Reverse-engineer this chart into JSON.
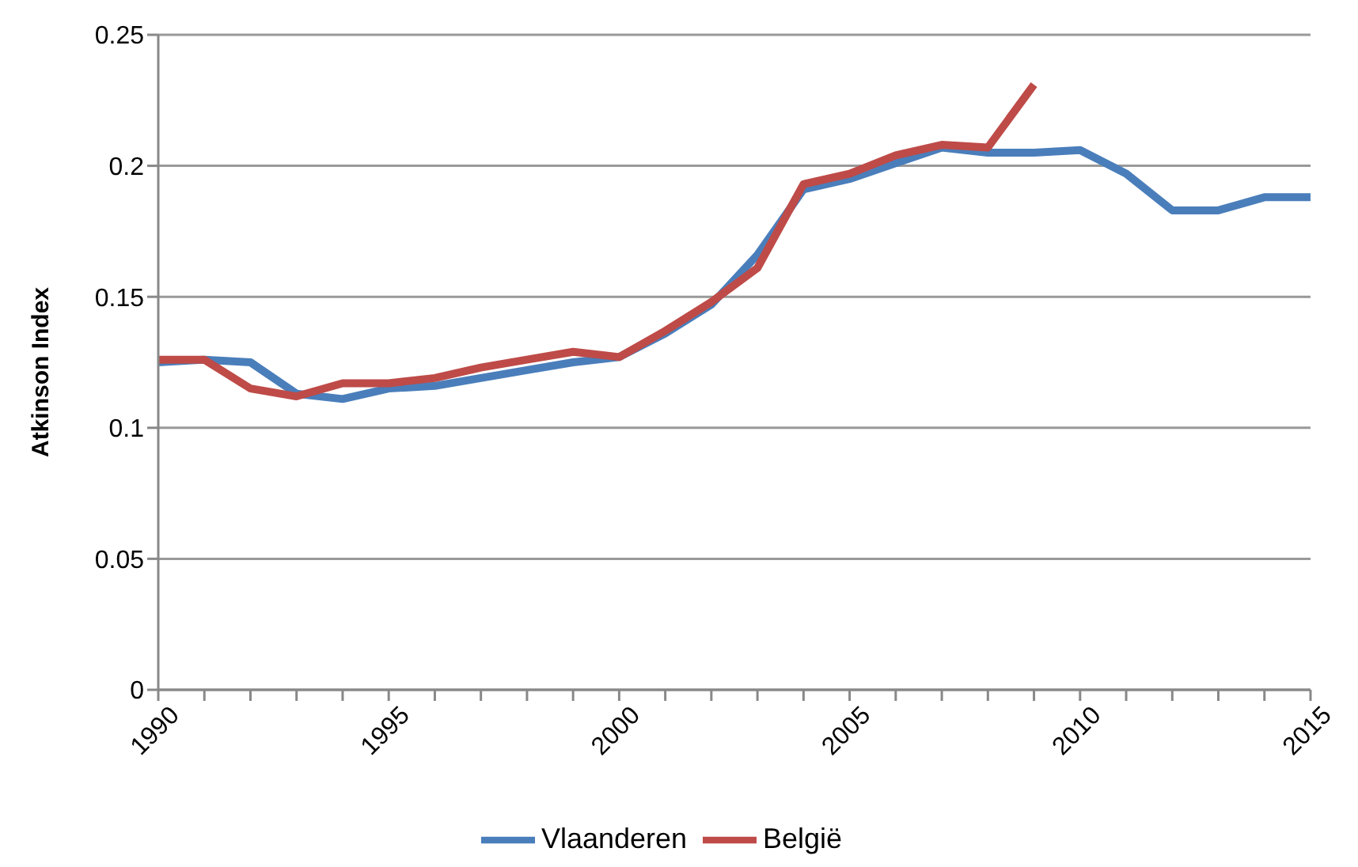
{
  "chart_data": {
    "type": "line",
    "ylabel": "Atkinson Index",
    "categories": [
      "1990",
      null,
      null,
      null,
      null,
      "1995",
      null,
      null,
      null,
      null,
      "2000",
      null,
      null,
      null,
      null,
      "2005",
      null,
      null,
      null,
      null,
      "2010",
      null,
      null,
      null,
      null,
      "2015"
    ],
    "series": [
      {
        "name": "Vlaanderen",
        "color": "#4a7ebb",
        "values": [
          0.125,
          0.126,
          0.125,
          0.113,
          0.111,
          0.115,
          0.116,
          0.119,
          0.122,
          0.125,
          0.127,
          0.136,
          0.147,
          0.166,
          0.191,
          0.195,
          0.201,
          0.207,
          0.205,
          0.205,
          0.206,
          0.197,
          0.183,
          0.183,
          0.188,
          0.188
        ]
      },
      {
        "name": "België",
        "color": "#be4b48",
        "values": [
          0.126,
          0.126,
          0.115,
          0.112,
          0.117,
          0.117,
          0.119,
          0.123,
          0.126,
          0.129,
          0.127,
          0.137,
          0.148,
          0.161,
          0.193,
          0.197,
          0.204,
          0.208,
          0.207,
          0.231,
          null,
          null,
          null,
          null,
          null,
          null
        ]
      }
    ],
    "ylim": [
      0,
      0.25
    ],
    "yticks": [
      0,
      0.05,
      0.1,
      0.15,
      0.2,
      0.25
    ],
    "grid": "y",
    "legend": "bottom",
    "marker": "none",
    "line_style": "solid"
  }
}
